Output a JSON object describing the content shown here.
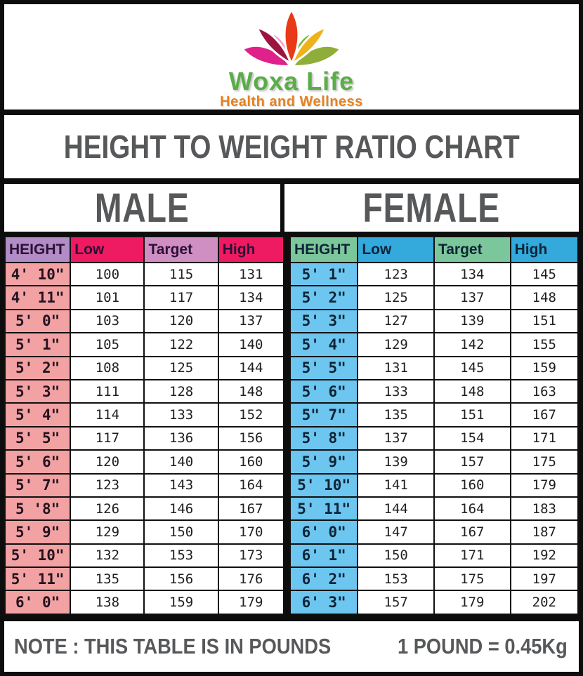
{
  "logo": {
    "brand": "Woxa Life",
    "tagline": "Health and Wellness",
    "brand_color": "#5aad47",
    "tagline_color": "#e8821e",
    "petals": {
      "big_left_pink": "#e0218a",
      "inner_left_lightpink": "#f29ec5",
      "upper_left_maroon": "#9c1340",
      "center_red": "#e83a17",
      "upper_right_yellow": "#f0b219",
      "inner_right_green": "#7fb332",
      "big_right_green": "#8fae39"
    }
  },
  "title": {
    "text": "HEIGHT TO WEIGHT RATIO CHART"
  },
  "note": {
    "left": "NOTE : THIS TABLE IS IN POUNDS",
    "right": "1 POUND = 0.45Kg"
  },
  "ui": {
    "male": {
      "header_bgs": [
        "#b18cc6",
        "#ee1a62",
        "#d08fc2",
        "#ee1a62"
      ],
      "height_cell_bg": "#f3a2a4"
    },
    "female": {
      "header_bgs": [
        "#7cc69b",
        "#33a9dc",
        "#7cc69b",
        "#33a9dc"
      ],
      "height_cell_bg": "#6cc6f0"
    }
  },
  "chart_data": {
    "type": "table",
    "title": "HEIGHT TO WEIGHT RATIO CHART",
    "unit": "pounds",
    "conversion": "1 POUND = 0.45Kg",
    "tables": [
      {
        "name": "MALE",
        "columns": [
          "HEIGHT",
          "Low",
          "Target",
          "High"
        ],
        "rows": [
          [
            "4' 10\"",
            100,
            115,
            131
          ],
          [
            "4' 11\"",
            101,
            117,
            134
          ],
          [
            "5' 0\"",
            103,
            120,
            137
          ],
          [
            "5' 1\"",
            105,
            122,
            140
          ],
          [
            "5' 2\"",
            108,
            125,
            144
          ],
          [
            "5' 3\"",
            111,
            128,
            148
          ],
          [
            "5' 4\"",
            114,
            133,
            152
          ],
          [
            "5' 5\"",
            117,
            136,
            156
          ],
          [
            "5' 6\"",
            120,
            140,
            160
          ],
          [
            "5' 7\"",
            123,
            143,
            164
          ],
          [
            "5 '8\"",
            126,
            146,
            167
          ],
          [
            "5' 9\"",
            129,
            150,
            170
          ],
          [
            "5' 10\"",
            132,
            153,
            173
          ],
          [
            "5' 11\"",
            135,
            156,
            176
          ],
          [
            "6' 0\"",
            138,
            159,
            179
          ]
        ]
      },
      {
        "name": "FEMALE",
        "columns": [
          "HEIGHT",
          "Low",
          "Target",
          "High"
        ],
        "rows": [
          [
            "5' 1\"",
            123,
            134,
            145
          ],
          [
            "5' 2\"",
            125,
            137,
            148
          ],
          [
            "5' 3\"",
            127,
            139,
            151
          ],
          [
            "5' 4\"",
            129,
            142,
            155
          ],
          [
            "5' 5\"",
            131,
            145,
            159
          ],
          [
            "5' 6\"",
            133,
            148,
            163
          ],
          [
            "5\" 7\"",
            135,
            151,
            167
          ],
          [
            "5' 8\"",
            137,
            154,
            171
          ],
          [
            "5' 9\"",
            139,
            157,
            175
          ],
          [
            "5' 10\"",
            141,
            160,
            179
          ],
          [
            "5' 11\"",
            144,
            164,
            183
          ],
          [
            "6' 0\"",
            147,
            167,
            187
          ],
          [
            "6' 1\"",
            150,
            171,
            192
          ],
          [
            "6' 2\"",
            153,
            175,
            197
          ],
          [
            "6' 3\"",
            157,
            179,
            202
          ]
        ]
      }
    ]
  }
}
